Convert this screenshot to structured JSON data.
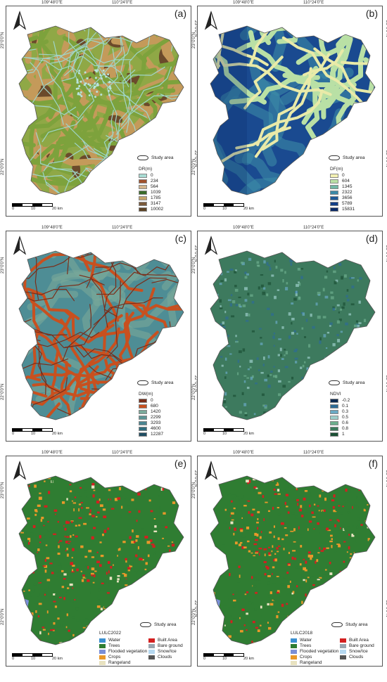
{
  "coords": {
    "top_left": "109°48'0\"E",
    "top_right": "110°24'0\"E",
    "lat_top": "23°0'0\"N",
    "lat_mid": "22°0'0\"N"
  },
  "study_area_label": "Study area",
  "scale": {
    "labels": [
      "0",
      "10",
      "20 km"
    ]
  },
  "panels": [
    {
      "id": "a",
      "label": "(a)",
      "legend_title": "DR(m)",
      "classes": [
        "0",
        "234",
        "564",
        "1039",
        "1785",
        "3147",
        "10002"
      ],
      "colors": [
        "#a8dcd4",
        "#a0522d",
        "#d2b48c",
        "#3a6b2a",
        "#c4a46b",
        "#7a5a3a",
        "#5c4326"
      ],
      "fill": "#8fa846"
    },
    {
      "id": "b",
      "label": "(b)",
      "legend_title": "DF(m)",
      "classes": [
        "0",
        "604",
        "1345",
        "2322",
        "3656",
        "5789",
        "15831"
      ],
      "colors": [
        "#f3f0b3",
        "#b9e0a5",
        "#6fb7a5",
        "#3c8aa7",
        "#1f5a98",
        "#123e86",
        "#0b2a66"
      ],
      "fill": "#1a4a90"
    },
    {
      "id": "c",
      "label": "(c)",
      "legend_title": "DW(m)",
      "classes": [
        "0",
        "680",
        "1420",
        "2299",
        "3293",
        "4600",
        "12287"
      ],
      "colors": [
        "#7a2e1a",
        "#c8501f",
        "#7aa99a",
        "#5b9494",
        "#4a8591",
        "#2f6c7d",
        "#1f4e63"
      ],
      "fill": "#4e8d95"
    },
    {
      "id": "d",
      "label": "(d)",
      "legend_title": "NDVI",
      "classes": [
        "-0.2",
        "0.1",
        "0.3",
        "0.5",
        "0.6",
        "0.8",
        "1"
      ],
      "colors": [
        "#0d2b52",
        "#2d6b96",
        "#6aa9c4",
        "#9ccfcb",
        "#6cae8d",
        "#3a7a5c",
        "#1b5035"
      ],
      "fill": "#3d7a5e"
    }
  ],
  "lulc_panels": [
    {
      "id": "e",
      "label": "(e)",
      "legend_title": "LULC2022"
    },
    {
      "id": "f",
      "label": "(f)",
      "legend_title": "LULC2018"
    }
  ],
  "lulc_classes": [
    {
      "name": "Water",
      "color": "#3a8fd0"
    },
    {
      "name": "Built Area",
      "color": "#d32020"
    },
    {
      "name": "Trees",
      "color": "#2f7d32"
    },
    {
      "name": "Bare ground",
      "color": "#9aa6b0"
    },
    {
      "name": "Flooded vegetation",
      "color": "#7a8fd8"
    },
    {
      "name": "Snow/Ice",
      "color": "#b5d8f0"
    },
    {
      "name": "Crops",
      "color": "#e8982a"
    },
    {
      "name": "Clouds",
      "color": "#555555"
    },
    {
      "name": "Rangeland",
      "color": "#e8e2c0"
    }
  ]
}
